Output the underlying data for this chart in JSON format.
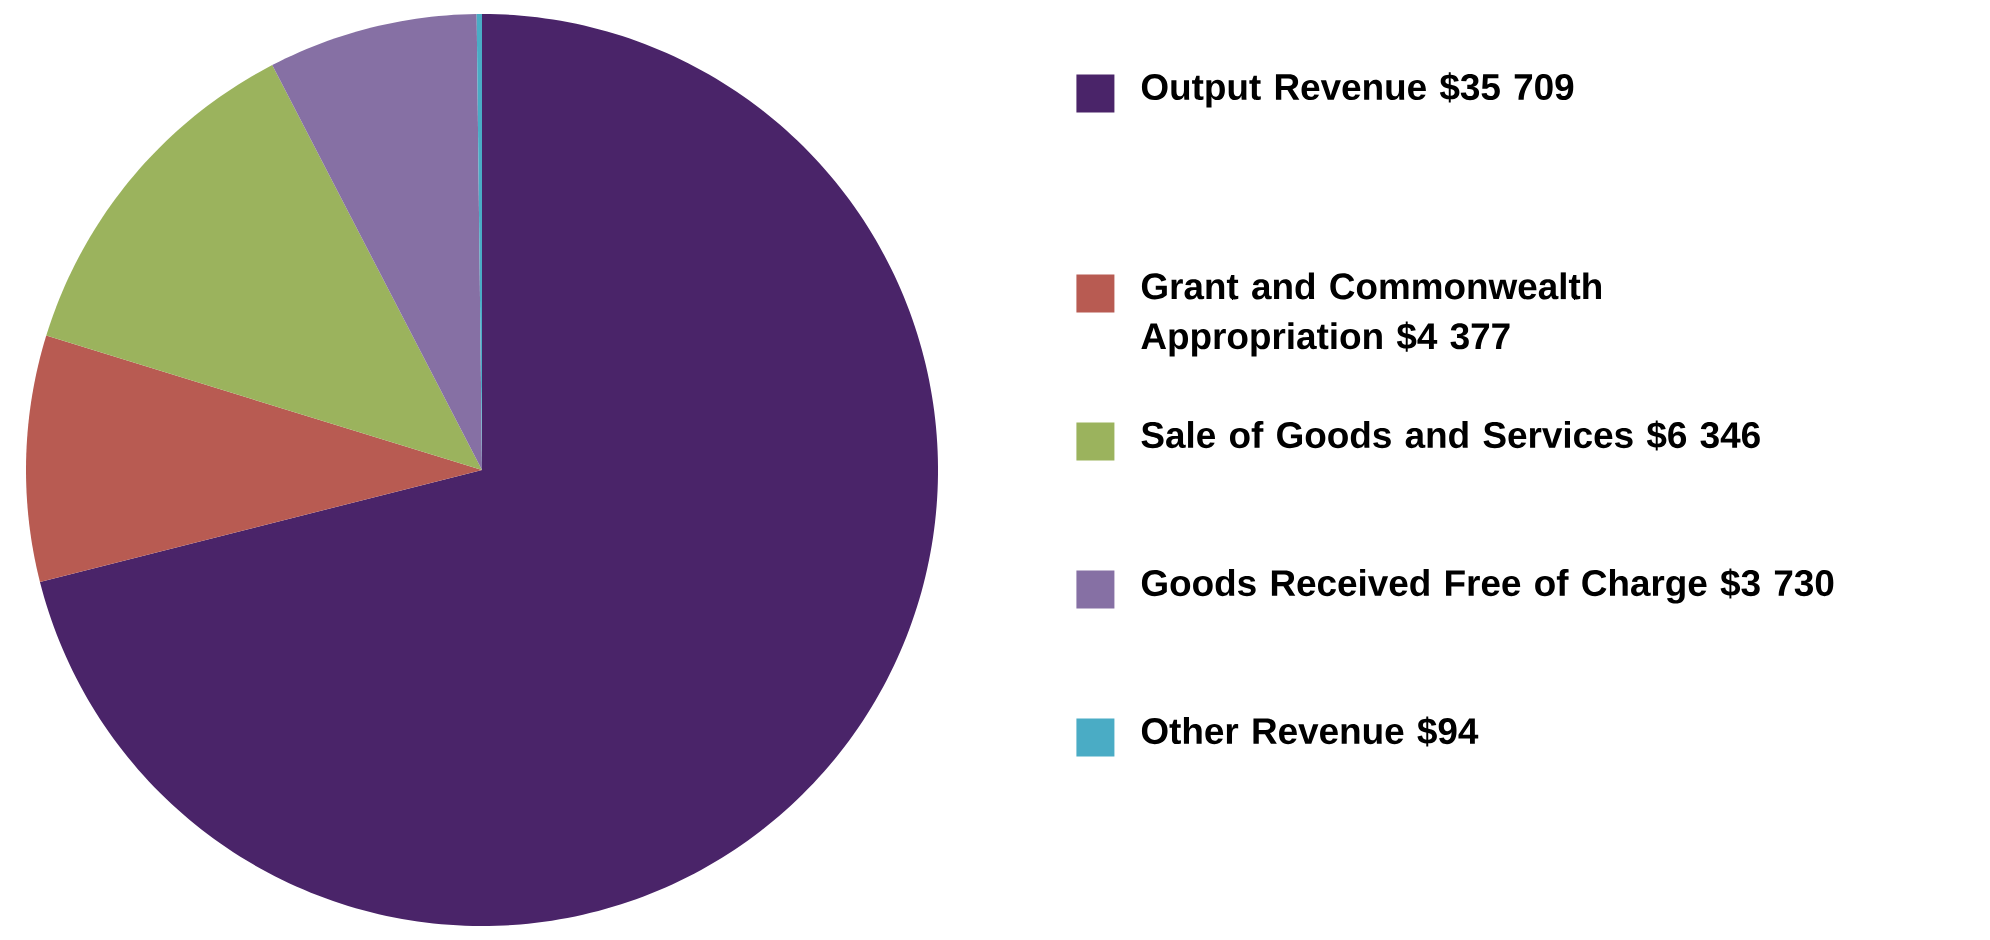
{
  "chart_data": {
    "type": "pie",
    "categories": [
      "Output Revenue $35 709",
      "Grant and Commonwealth Appropriation $4 377",
      "Sale of Goods and Services $6 346",
      "Goods Received Free of Charge $3 730",
      "Other Revenue $94"
    ],
    "values": [
      35709,
      4377,
      6346,
      3730,
      94
    ],
    "colors": [
      "#4a2469",
      "#b85b52",
      "#9bb35d",
      "#8670a4",
      "#4aacc5"
    ],
    "legend": "right"
  }
}
